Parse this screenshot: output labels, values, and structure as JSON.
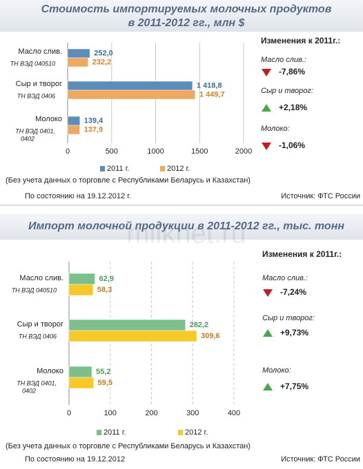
{
  "watermark": "milknet.ru",
  "chart_data": [
    {
      "type": "bar",
      "orientation": "horizontal",
      "title": [
        "Стоимость импортируемых молочных продуктов",
        "в 2011-2012 гг., млн $"
      ],
      "categories": [
        "Масло слив.",
        "Сыр и творог",
        "Молоко"
      ],
      "category_codes": [
        [
          "ТН ВЭД 040510"
        ],
        [
          "ТН ВЭД 0406"
        ],
        [
          "ТН ВЭД 0401,",
          "0402"
        ]
      ],
      "series": [
        {
          "name": "2011 г.",
          "color": "#5b8db8",
          "label_color": "#3a6f9a",
          "values": [
            252.0,
            1418.8,
            139.4
          ],
          "value_labels": [
            "252,0",
            "1 418,8",
            "139,4"
          ]
        },
        {
          "name": "2012 г.",
          "color": "#f0a860",
          "label_color": "#d9822b",
          "values": [
            232.2,
            1449.7,
            137.9
          ],
          "value_labels": [
            "232,2",
            "1 449,7",
            "137,9"
          ]
        }
      ],
      "xlim": [
        0,
        2000
      ],
      "xticks": [
        0,
        500,
        1000,
        1500,
        2000
      ],
      "grid": true,
      "note": "(Без учета данных о торговле с Республиками Беларусь и Казахстан)",
      "date": "По состоянию на  19.12.2012 г.",
      "source": "Источник: ФТС России",
      "changes": {
        "title": "Изменения к 2011г.:",
        "items": [
          {
            "label": "Масло слив.:",
            "value": -7.86,
            "value_label": "-7,86%"
          },
          {
            "label": "Сыр и творог:",
            "value": 2.18,
            "value_label": "+2,18%"
          },
          {
            "label": "Молоко:",
            "value": -1.06,
            "value_label": "-1,06%"
          }
        ]
      }
    },
    {
      "type": "bar",
      "orientation": "horizontal",
      "title": [
        "Импорт молочной продукции в 2011-2012 гг., тыс. тонн"
      ],
      "categories": [
        "Масло слив.",
        "Сыр и творог",
        "Молоко"
      ],
      "category_codes": [
        [
          "ТН ВЭД 040510"
        ],
        [
          "ТН ВЭД 0406"
        ],
        [
          "ТН ВЭД 0401,",
          "0402"
        ]
      ],
      "series": [
        {
          "name": "2011 г.",
          "color": "#7cbf8a",
          "label_color": "#4e9a5f",
          "values": [
            62.9,
            282.2,
            55.2
          ],
          "value_labels": [
            "62,9",
            "282,2",
            "55,2"
          ]
        },
        {
          "name": "2012 г.",
          "color": "#f7c928",
          "label_color": "#d07a1f",
          "values": [
            58.3,
            309.6,
            59.5
          ],
          "value_labels": [
            "58,3",
            "309,6",
            "59,5"
          ]
        }
      ],
      "xlim": [
        0,
        400
      ],
      "xticks": [
        0,
        100,
        200,
        300,
        400
      ],
      "grid": true,
      "note": "(Без учета данных о торговле с Республиками Беларусь и Казахстан)",
      "date": "По состоянию на   19.12.2012",
      "source": "Источник: ФТС России",
      "changes": {
        "title": "Изменения к 2011г.:",
        "items": [
          {
            "label": "Масло слив.:",
            "value": -7.24,
            "value_label": "-7,24%"
          },
          {
            "label": "Сыр и творог:",
            "value": 9.73,
            "value_label": "+9,73%"
          },
          {
            "label": "Молоко:",
            "value": 7.75,
            "value_label": "+7,75%"
          }
        ]
      }
    }
  ]
}
